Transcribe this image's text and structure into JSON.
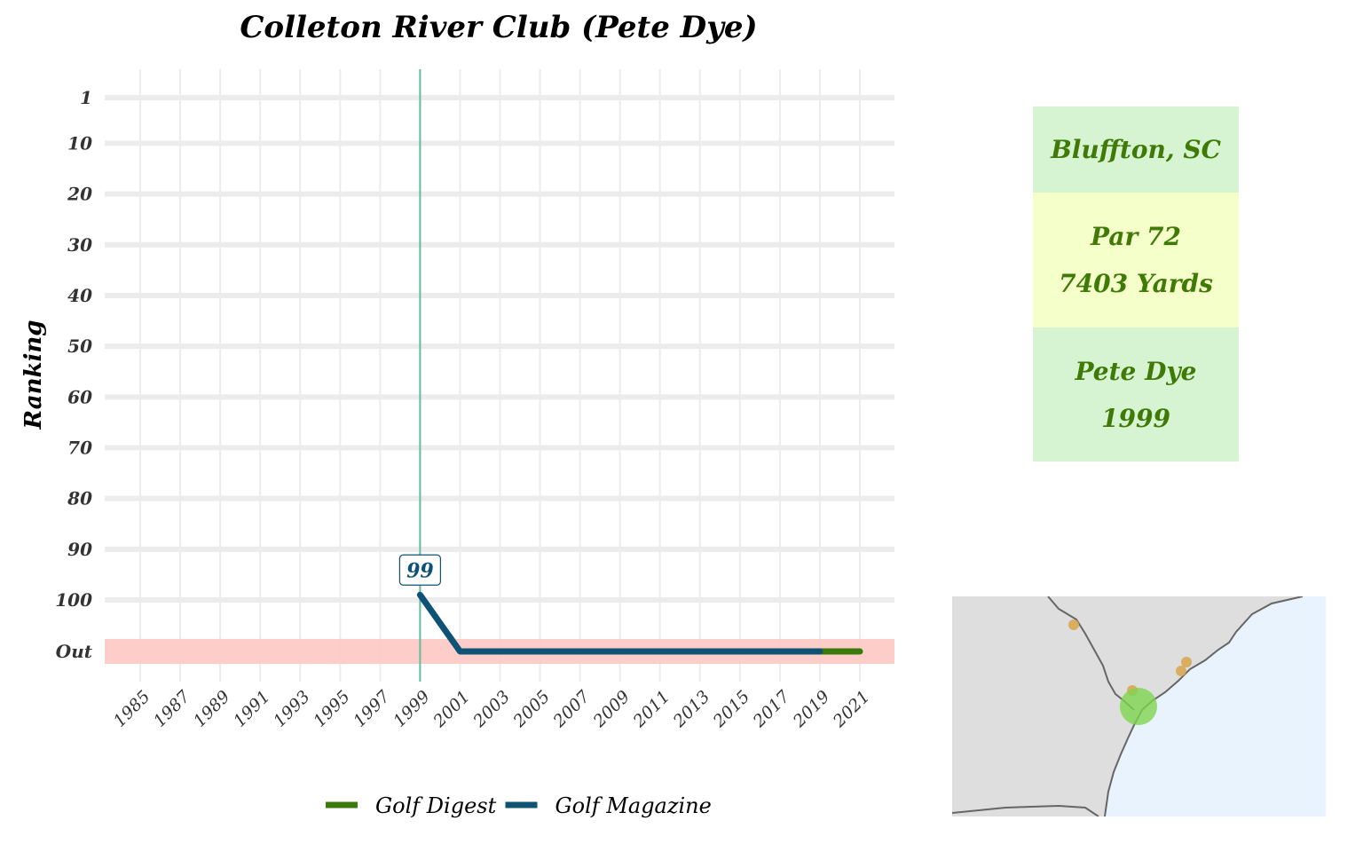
{
  "chart_data": {
    "type": "line",
    "title": "Colleton River Club (Pete Dye)",
    "ylabel": "Ranking",
    "xlabel": "",
    "x_ticks": [
      "1985",
      "1987",
      "1989",
      "1991",
      "1993",
      "1995",
      "1997",
      "1999",
      "2001",
      "2003",
      "2005",
      "2007",
      "2009",
      "2011",
      "2013",
      "2015",
      "2017",
      "2019",
      "2021"
    ],
    "y_ticks": [
      "1",
      "10",
      "20",
      "30",
      "40",
      "50",
      "60",
      "70",
      "80",
      "90",
      "100",
      "Out"
    ],
    "xlim": [
      1984,
      2023
    ],
    "grid": true,
    "legend_position": "bottom",
    "out_band_color": "#fdcac6",
    "vertical_marker": {
      "year": 1999,
      "color": "#66bb99"
    },
    "series": [
      {
        "name": "Golf Digest",
        "color": "#3a7a0a",
        "points": [
          {
            "x": 2019,
            "y": "Out"
          },
          {
            "x": 2021,
            "y": "Out"
          }
        ]
      },
      {
        "name": "Golf Magazine",
        "color": "#0e5276",
        "points": [
          {
            "x": 1999,
            "y": 99
          },
          {
            "x": 2001,
            "y": "Out"
          },
          {
            "x": 2019,
            "y": "Out"
          }
        ]
      }
    ],
    "data_labels": [
      {
        "text": "99",
        "x": 1999,
        "y": 99,
        "color": "#0e5276"
      }
    ]
  },
  "info": {
    "location": "Bluffton, SC",
    "par": "Par 72",
    "yards": "7403 Yards",
    "designer": "Pete Dye",
    "year": "1999",
    "text_color": "#3f7a06",
    "bg_green": "#d6f3d2",
    "bg_yellow": "#f5ffc9"
  },
  "map": {
    "land_color": "#dedede",
    "water_color": "#e8f3fd",
    "highlight_color": "#7dd44f",
    "other_marker_color": "#d9a64a"
  }
}
